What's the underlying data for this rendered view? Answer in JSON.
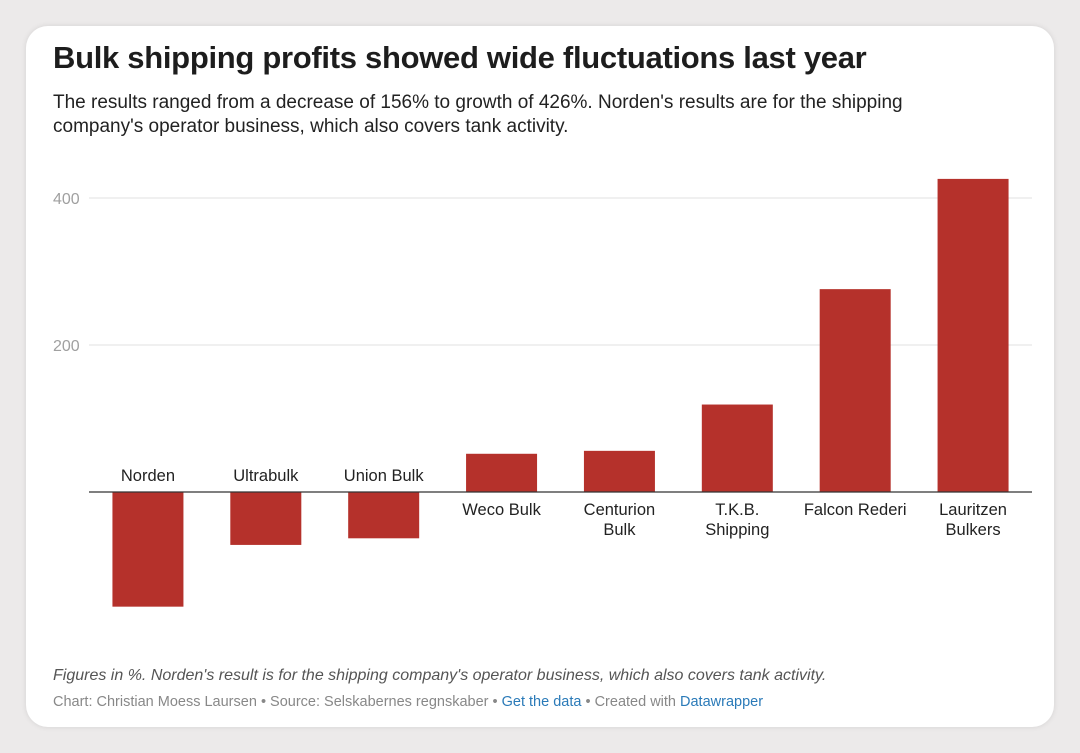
{
  "header": {
    "title": "Bulk shipping profits showed wide fluctuations last year",
    "subtitle": "The results ranged from a decrease of 156% to growth of 426%. Norden's results are for the shipping company's operator business, which also covers tank activity."
  },
  "footer": {
    "notes": "Figures in %. Norden's result is for the shipping company's operator business, which also covers tank activity.",
    "chart_by": "Chart: Christian Moess Laursen",
    "separator": "•",
    "source": "Source: Selskabernes regnskaber",
    "get_data": "Get the data",
    "created_with": "Created with",
    "tool": "Datawrapper"
  },
  "colors": {
    "bar": "#b5312b",
    "grid": "#e2e2e2",
    "axis": "#333333",
    "tick_label": "#a0a0a0",
    "category_label": "#222222",
    "link": "#2a7ab8"
  },
  "chart_data": {
    "type": "bar",
    "title": "Bulk shipping profits showed wide fluctuations last year",
    "xlabel": "",
    "ylabel": "",
    "unit": "%",
    "categories": [
      [
        "Norden"
      ],
      [
        "Ultrabulk"
      ],
      [
        "Union Bulk"
      ],
      [
        "Weco Bulk"
      ],
      [
        "Centurion",
        "Bulk"
      ],
      [
        "T.K.B.",
        "Shipping"
      ],
      [
        "Falcon Rederi"
      ],
      [
        "Lauritzen",
        "Bulkers"
      ]
    ],
    "values": [
      -156,
      -72,
      -63,
      52,
      56,
      119,
      276,
      426
    ],
    "ylim": [
      -180,
      430
    ],
    "yticks": [
      200,
      400
    ],
    "grid": true,
    "legend": "none"
  }
}
